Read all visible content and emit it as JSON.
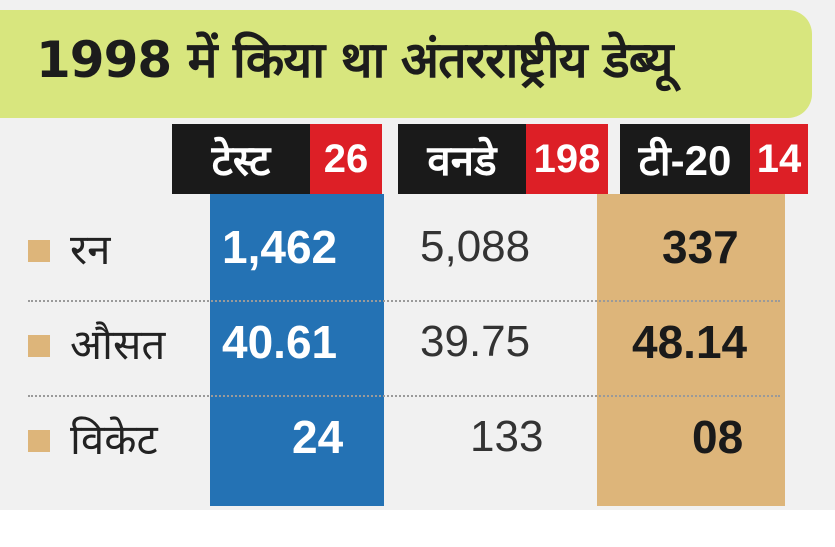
{
  "title": "1998 में किया था अंतरराष्ट्रीय डेब्यू",
  "formats": [
    {
      "name": "टेस्ट",
      "matches": "26"
    },
    {
      "name": "वनडे",
      "matches": "198"
    },
    {
      "name": "टी-20",
      "matches": "14"
    }
  ],
  "rows": [
    {
      "label": "रन",
      "test": "1,462",
      "odi": "5,088",
      "t20": "337"
    },
    {
      "label": "औसत",
      "test": "40.61",
      "odi": "39.75",
      "t20": "48.14"
    },
    {
      "label": "विकेट",
      "test": "24",
      "odi": "133",
      "t20": "08"
    }
  ],
  "colors": {
    "title_bg": "#d8e67e",
    "header_bg": "#1a1a1a",
    "count_bg": "#dd1f26",
    "test_col": "#2472b4",
    "t20_col": "#ddb57a"
  }
}
